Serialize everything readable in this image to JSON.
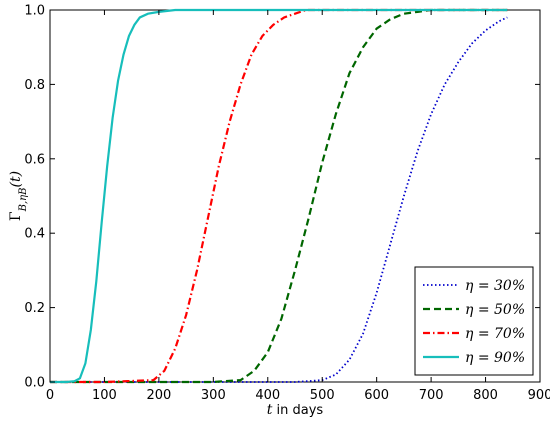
{
  "chart_data": {
    "type": "line",
    "title": "",
    "xlabel_var": "t",
    "xlabel_text": " in days",
    "ylabel": "Γ_{B,ηB}(t)",
    "xlim": [
      0,
      900
    ],
    "ylim": [
      0,
      1.0
    ],
    "xticks": [
      "0",
      "100",
      "200",
      "300",
      "400",
      "500",
      "600",
      "700",
      "800",
      "900"
    ],
    "yticks": [
      "0.0",
      "0.2",
      "0.4",
      "0.6",
      "0.8",
      "1.0"
    ],
    "grid": false,
    "legend_position": "lower-right",
    "series": [
      {
        "name": "η = 30%",
        "color": "#0000cc",
        "style": "dotted",
        "x": [
          0,
          100,
          200,
          300,
          400,
          450,
          500,
          525,
          550,
          575,
          600,
          625,
          650,
          675,
          700,
          725,
          750,
          775,
          800,
          825,
          840
        ],
        "y": [
          0,
          0,
          0,
          0,
          0,
          0,
          0.005,
          0.02,
          0.06,
          0.13,
          0.24,
          0.37,
          0.5,
          0.62,
          0.72,
          0.8,
          0.86,
          0.91,
          0.945,
          0.97,
          0.98
        ]
      },
      {
        "name": "η = 50%",
        "color": "#006600",
        "style": "dashed",
        "x": [
          0,
          100,
          200,
          300,
          350,
          375,
          400,
          425,
          450,
          475,
          500,
          525,
          550,
          575,
          600,
          625,
          650,
          675,
          700,
          750,
          800,
          840
        ],
        "y": [
          0,
          0,
          0,
          0,
          0.005,
          0.03,
          0.08,
          0.17,
          0.3,
          0.44,
          0.59,
          0.72,
          0.83,
          0.9,
          0.95,
          0.975,
          0.99,
          0.995,
          1.0,
          1.0,
          1.0,
          1.0
        ]
      },
      {
        "name": "η = 70%",
        "color": "#ff0000",
        "style": "dashdot",
        "x": [
          0,
          100,
          190,
          210,
          230,
          250,
          270,
          290,
          310,
          330,
          350,
          370,
          390,
          410,
          430,
          450,
          470,
          500,
          600,
          700,
          840
        ],
        "y": [
          0,
          0,
          0.005,
          0.03,
          0.09,
          0.18,
          0.3,
          0.44,
          0.58,
          0.7,
          0.8,
          0.88,
          0.93,
          0.96,
          0.98,
          0.99,
          1.0,
          1.0,
          1.0,
          1.0,
          1.0
        ]
      },
      {
        "name": "η = 90%",
        "color": "#17bebb",
        "style": "solid",
        "x": [
          0,
          30,
          45,
          55,
          65,
          75,
          85,
          95,
          105,
          115,
          125,
          135,
          145,
          155,
          165,
          180,
          200,
          230,
          260,
          300,
          500,
          700,
          840
        ],
        "y": [
          0,
          0,
          0.002,
          0.01,
          0.05,
          0.14,
          0.27,
          0.43,
          0.58,
          0.71,
          0.81,
          0.88,
          0.93,
          0.96,
          0.98,
          0.99,
          0.995,
          1.0,
          1.0,
          1.0,
          1.0,
          1.0,
          1.0
        ]
      }
    ]
  }
}
